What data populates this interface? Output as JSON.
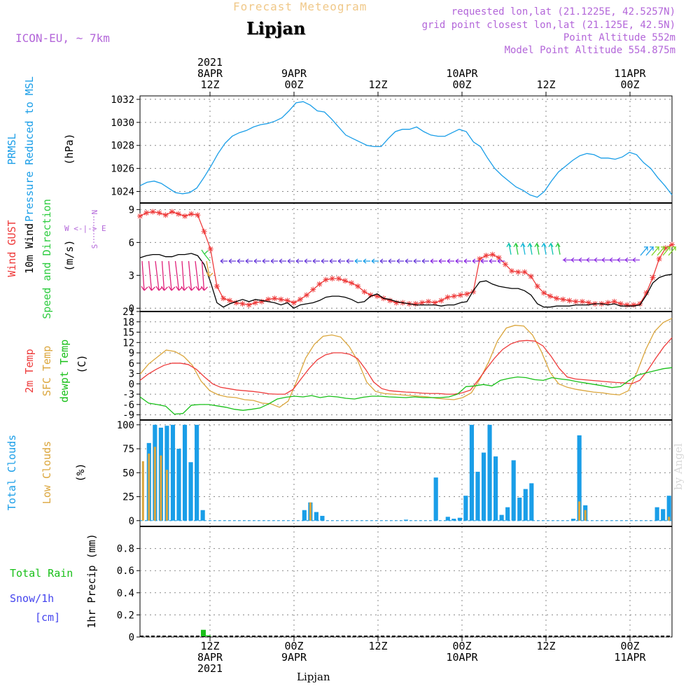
{
  "header": {
    "title": "Forecast Meteogram",
    "location": "Lipjan",
    "model": "ICON-EU, ~ 7km",
    "requested": "requested lon,lat (21.1225E, 42.5257N)",
    "gridpoint": "grid point closest lon,lat (21.125E, 42.5N)",
    "point_alt": "Point Altitude 552m",
    "model_alt": "Model Point Altitude 554.875m",
    "footer": "Lipjan",
    "credit": "by Angel"
  },
  "colors": {
    "pressure": "#1a9ee8",
    "gust": "#ee3b3b",
    "wind": "#000000",
    "dir": "#2ecc40",
    "t2m": "#ee3b3b",
    "sfc": "#dba63c",
    "dew": "#18c018",
    "total_cloud": "#1a9ee8",
    "low_cloud": "#dba63c",
    "rain": "#18c018",
    "snow": "#4444ee",
    "purple": "#b366d9",
    "title": "#f0c888"
  },
  "time_axis": {
    "top_labels": [
      {
        "t": 10,
        "lines": [
          "2021",
          "8APR",
          "12Z"
        ]
      },
      {
        "t": 22,
        "lines": [
          "9APR",
          "00Z"
        ]
      },
      {
        "t": 34,
        "lines": [
          "12Z"
        ]
      },
      {
        "t": 46,
        "lines": [
          "10APR",
          "00Z"
        ]
      },
      {
        "t": 58,
        "lines": [
          "12Z"
        ]
      },
      {
        "t": 70,
        "lines": [
          "11APR",
          "00Z"
        ]
      }
    ],
    "bottom_labels": [
      {
        "t": 10,
        "lines": [
          "12Z",
          "8APR",
          "2021"
        ]
      },
      {
        "t": 22,
        "lines": [
          "00Z",
          "9APR"
        ]
      },
      {
        "t": 34,
        "lines": [
          "12Z"
        ]
      },
      {
        "t": 46,
        "lines": [
          "00Z",
          "10APR"
        ]
      },
      {
        "t": 58,
        "lines": [
          "12Z"
        ]
      },
      {
        "t": 70,
        "lines": [
          "00Z",
          "11APR"
        ]
      }
    ],
    "gridlines_t": [
      10,
      22,
      34,
      46,
      58,
      70
    ]
  },
  "chart_data": [
    {
      "type": "line",
      "name": "pressure",
      "ylabels": [
        "PRMSL",
        "Pressure Reduced to MSL",
        "(hPa)"
      ],
      "ylim": [
        1023,
        1032.3
      ],
      "yticks": [
        1024,
        1026,
        1028,
        1030,
        1032
      ],
      "series": [
        {
          "name": "PRMSL",
          "values": [
            1024.5,
            1024.8,
            1024.9,
            1024.7,
            1024.3,
            1023.9,
            1023.8,
            1023.9,
            1024.3,
            1025.2,
            1026.2,
            1027.3,
            1028.2,
            1028.8,
            1029.1,
            1029.3,
            1029.6,
            1029.8,
            1029.9,
            1030.1,
            1030.4,
            1031.0,
            1031.7,
            1031.8,
            1031.5,
            1031.0,
            1030.9,
            1030.3,
            1029.6,
            1028.9,
            1028.6,
            1028.3,
            1028.0,
            1027.9,
            1027.9,
            1028.6,
            1029.2,
            1029.4,
            1029.4,
            1029.6,
            1029.2,
            1028.9,
            1028.8,
            1028.8,
            1029.1,
            1029.4,
            1029.2,
            1028.3,
            1027.9,
            1026.9,
            1026.0,
            1025.4,
            1024.9,
            1024.4,
            1024.1,
            1023.7,
            1023.5,
            1024.0,
            1024.9,
            1025.7,
            1026.2,
            1026.7,
            1027.1,
            1027.3,
            1027.2,
            1026.9,
            1026.9,
            1026.8,
            1027.0,
            1027.4,
            1027.2,
            1026.5,
            1026.0,
            1025.2,
            1024.5,
            1023.7
          ]
        }
      ]
    },
    {
      "type": "line",
      "name": "wind",
      "ylabels": [
        "Wind GUST",
        "10m Wind",
        "Speed and Direction",
        "(m/s)"
      ],
      "compass": [
        "N",
        "W <-|-> E",
        "S"
      ],
      "ylim": [
        -0.3,
        9.6
      ],
      "yticks": [
        0,
        3,
        6,
        9
      ],
      "series": [
        {
          "name": "Wind GUST",
          "values": [
            8.4,
            8.7,
            8.8,
            8.7,
            8.5,
            8.8,
            8.6,
            8.4,
            8.6,
            8.5,
            7.0,
            5.4,
            2.0,
            0.9,
            0.7,
            0.5,
            0.4,
            0.3,
            0.5,
            0.6,
            0.8,
            0.9,
            0.8,
            0.7,
            0.5,
            0.8,
            1.2,
            1.7,
            2.2,
            2.6,
            2.7,
            2.7,
            2.5,
            2.3,
            2.0,
            1.5,
            1.2,
            1.1,
            0.9,
            0.7,
            0.5,
            0.5,
            0.4,
            0.4,
            0.5,
            0.6,
            0.5,
            0.7,
            1.0,
            1.1,
            1.2,
            1.3,
            1.5,
            4.5,
            4.8,
            4.9,
            4.6,
            4.0,
            3.4,
            3.3,
            3.3,
            2.9,
            2.0,
            1.4,
            1.1,
            0.9,
            0.8,
            0.7,
            0.6,
            0.6,
            0.5,
            0.4,
            0.4,
            0.5,
            0.6,
            0.4,
            0.3,
            0.3,
            0.4,
            1.4,
            2.8,
            4.5,
            5.5,
            5.8
          ]
        },
        {
          "name": "10m Wind",
          "values": [
            4.6,
            4.8,
            4.9,
            4.9,
            4.7,
            4.7,
            4.9,
            4.9,
            5.0,
            4.8,
            4.0,
            2.4,
            0.5,
            0.1,
            0.4,
            0.6,
            0.8,
            0.6,
            0.8,
            0.7,
            0.6,
            0.5,
            0.3,
            0.5,
            0.0,
            0.3,
            0.4,
            0.5,
            0.7,
            1.0,
            1.1,
            1.1,
            1.0,
            0.8,
            0.5,
            0.6,
            1.1,
            1.3,
            0.9,
            0.8,
            0.6,
            0.5,
            0.4,
            0.3,
            0.3,
            0.3,
            0.3,
            0.2,
            0.3,
            0.3,
            0.5,
            0.6,
            1.6,
            2.4,
            2.5,
            2.2,
            2.0,
            1.9,
            1.8,
            1.8,
            1.6,
            1.2,
            0.4,
            0.1,
            0.1,
            0.2,
            0.2,
            0.2,
            0.3,
            0.3,
            0.3,
            0.4,
            0.4,
            0.3,
            0.4,
            0.2,
            0.2,
            0.2,
            0.3,
            1.2,
            2.3,
            2.8,
            3.0,
            3.1
          ]
        }
      ]
    },
    {
      "type": "line",
      "name": "temperature",
      "ylabels": [
        "2m Temp",
        "SFC Temp",
        "dewpt Temp",
        "(C)"
      ],
      "ylim": [
        -10.5,
        21
      ],
      "yticks": [
        -9,
        -6,
        -3,
        0,
        3,
        6,
        9,
        12,
        15,
        18,
        21
      ],
      "series": [
        {
          "name": "2m Temp",
          "values": [
            1.0,
            2.8,
            4.2,
            5.4,
            6.0,
            6.0,
            5.6,
            4.2,
            2.0,
            0.0,
            -1.0,
            -1.4,
            -1.8,
            -2.0,
            -2.2,
            -2.5,
            -2.9,
            -3.0,
            -3.0,
            -1.6,
            1.5,
            4.5,
            7.0,
            8.4,
            9.0,
            9.0,
            8.6,
            7.3,
            4.2,
            0.5,
            -1.4,
            -2.0,
            -2.2,
            -2.4,
            -2.5,
            -2.7,
            -2.8,
            -2.8,
            -3.0,
            -3.0,
            -2.6,
            -1.8,
            1.2,
            4.5,
            7.5,
            10.0,
            11.6,
            12.4,
            12.6,
            12.4,
            11.0,
            8.0,
            4.5,
            2.0,
            1.4,
            1.2,
            1.0,
            0.8,
            0.6,
            0.4,
            0.3,
            0.0,
            1.0,
            4.0,
            7.5,
            10.8,
            13.4
          ]
        },
        {
          "name": "SFC Temp",
          "values": [
            2.8,
            5.8,
            7.8,
            9.8,
            9.4,
            8.0,
            5.4,
            0.8,
            -2.0,
            -3.2,
            -3.8,
            -4.0,
            -4.6,
            -4.8,
            -5.6,
            -5.8,
            -6.8,
            -5.0,
            1.0,
            7.5,
            11.5,
            13.8,
            14.2,
            13.6,
            10.8,
            6.5,
            0.5,
            -2.2,
            -2.8,
            -3.0,
            -3.2,
            -3.4,
            -3.6,
            -3.8,
            -4.2,
            -4.4,
            -4.6,
            -4.0,
            -2.6,
            1.5,
            6.5,
            12.5,
            16.2,
            17.0,
            16.8,
            14.2,
            9.5,
            3.4,
            0.0,
            -1.0,
            -1.6,
            -2.0,
            -2.4,
            -2.6,
            -3.0,
            -3.2,
            -2.0,
            3.5,
            10.0,
            15.2,
            17.8,
            19.0
          ]
        },
        {
          "name": "dewpt Temp",
          "values": [
            -3.8,
            -5.6,
            -6.0,
            -6.5,
            -8.8,
            -8.6,
            -6.2,
            -6.0,
            -6.0,
            -6.4,
            -6.8,
            -7.4,
            -7.7,
            -7.4,
            -7.0,
            -5.8,
            -4.4,
            -3.9,
            -3.6,
            -3.8,
            -3.4,
            -4.0,
            -3.6,
            -3.8,
            -4.2,
            -4.4,
            -3.9,
            -3.6,
            -3.6,
            -3.8,
            -3.9,
            -4.0,
            -3.8,
            -4.0,
            -4.0,
            -4.0,
            -3.8,
            -3.0,
            -0.8,
            -0.6,
            -0.2,
            -0.6,
            1.0,
            1.6,
            2.0,
            1.8,
            1.2,
            1.0,
            1.8,
            1.4,
            1.1,
            0.6,
            0.2,
            -0.2,
            -0.6,
            -1.1,
            -0.8,
            1.0,
            2.5,
            3.2,
            3.8,
            4.4,
            4.7
          ]
        }
      ]
    },
    {
      "type": "bar",
      "name": "clouds",
      "ylabels": [
        "Total Clouds",
        "Low Clouds",
        "(%)"
      ],
      "ylim": [
        -6,
        105
      ],
      "yticks": [
        0,
        25,
        50,
        75,
        100
      ],
      "series": [
        {
          "name": "Total Clouds",
          "values": [
            0,
            81,
            100,
            97,
            99,
            100,
            75,
            100,
            61,
            100,
            11,
            0,
            0,
            0,
            0,
            0,
            0,
            0,
            0,
            0,
            0,
            0,
            0,
            0,
            0,
            0,
            0,
            11,
            19,
            9,
            5,
            0,
            0,
            0,
            0,
            0,
            0,
            0,
            0,
            0,
            0,
            0,
            0,
            0,
            1,
            0,
            0,
            0,
            0,
            45,
            0,
            4,
            2,
            3,
            26,
            100,
            51,
            71,
            100,
            67,
            6,
            14,
            63,
            24,
            33,
            39,
            0,
            0,
            0,
            0,
            0,
            0,
            2,
            89,
            16,
            0,
            0,
            0,
            0,
            0,
            0,
            0,
            0,
            0,
            0,
            0,
            14,
            12,
            26
          ]
        },
        {
          "name": "Low Clouds",
          "values": [
            62,
            70,
            77,
            68,
            53,
            0,
            0,
            0,
            0,
            0,
            0,
            0,
            0,
            0,
            0,
            0,
            0,
            0,
            0,
            0,
            0,
            0,
            0,
            0,
            0,
            0,
            0,
            0,
            19,
            0,
            0,
            0,
            0,
            0,
            0,
            0,
            0,
            0,
            0,
            0,
            0,
            0,
            0,
            0,
            0,
            0,
            0,
            0,
            0,
            0,
            0,
            0,
            0,
            0,
            0,
            0,
            0,
            0,
            0,
            0,
            0,
            0,
            0,
            0,
            0,
            0,
            0,
            0,
            0,
            0,
            0,
            0,
            0,
            20,
            11,
            0,
            0,
            0,
            0,
            0,
            0,
            0,
            0,
            0,
            0,
            0,
            0,
            0,
            4
          ]
        }
      ]
    },
    {
      "type": "bar",
      "name": "precipitation",
      "ylabels": [
        "1hr Precip (mm)"
      ],
      "legend": [
        "Total  Rain",
        "Snow/1h",
        "[cm]"
      ],
      "ylim": [
        0,
        1.0
      ],
      "yticks": [
        0,
        0.2,
        0.4,
        0.6,
        0.8
      ],
      "series": [
        {
          "name": "Total Rain",
          "x": [
            9.0,
            9.7
          ],
          "values": [
            0.065,
            0.015
          ]
        },
        {
          "name": "Snow/1h",
          "x": [],
          "values": []
        }
      ]
    }
  ]
}
